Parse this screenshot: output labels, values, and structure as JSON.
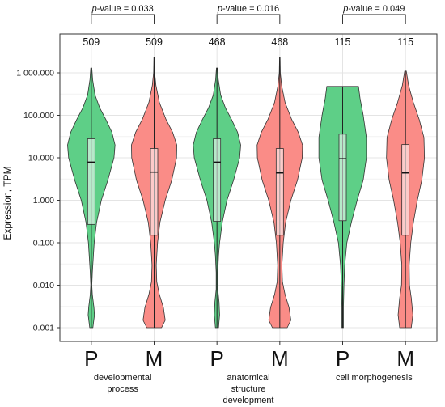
{
  "chart_data": {
    "type": "violin",
    "ylabel": "Expression, TPM",
    "yscale": "log10",
    "ylim": [
      0.001,
      1000
    ],
    "yticks": [
      {
        "value": 0.001,
        "label": "0.001"
      },
      {
        "value": 0.01,
        "label": "0.010"
      },
      {
        "value": 0.1,
        "label": "0.100"
      },
      {
        "value": 1,
        "label": "1.000"
      },
      {
        "value": 10,
        "label": "10.000"
      },
      {
        "value": 100,
        "label": "100.000"
      },
      {
        "value": 1000,
        "label": "1 000.000"
      }
    ],
    "grid": true,
    "colors": {
      "P": "#5ecf87",
      "M": "#fa8c87"
    },
    "groups": [
      {
        "label_lines": [
          "developmental",
          "process"
        ],
        "pvalue_prefix": "p",
        "pvalue_text": "-value = 0.033",
        "violins": [
          {
            "category": "P",
            "n": "509",
            "min": 0.001,
            "max": 1300,
            "q1": 0.27,
            "median": 7.9,
            "q3": 28,
            "width_profile": [
              [
                0.001,
                0.06
              ],
              [
                0.002,
                0.12
              ],
              [
                0.003,
                0.1
              ],
              [
                0.006,
                0.04
              ],
              [
                0.01,
                0.02
              ],
              [
                0.02,
                0.04
              ],
              [
                0.04,
                0.07
              ],
              [
                0.1,
                0.11
              ],
              [
                0.3,
                0.2
              ],
              [
                1,
                0.38
              ],
              [
                3,
                0.63
              ],
              [
                10,
                0.86
              ],
              [
                20,
                0.9
              ],
              [
                40,
                0.78
              ],
              [
                80,
                0.55
              ],
              [
                150,
                0.32
              ],
              [
                300,
                0.14
              ],
              [
                700,
                0.05
              ],
              [
                1300,
                0.02
              ]
            ]
          },
          {
            "category": "M",
            "n": "509",
            "min": 0.001,
            "max": 2300,
            "q1": 0.15,
            "median": 4.6,
            "q3": 16.5,
            "width_profile": [
              [
                0.001,
                0.28
              ],
              [
                0.0015,
                0.42
              ],
              [
                0.003,
                0.35
              ],
              [
                0.006,
                0.2
              ],
              [
                0.012,
                0.1
              ],
              [
                0.03,
                0.08
              ],
              [
                0.1,
                0.13
              ],
              [
                0.3,
                0.22
              ],
              [
                1,
                0.42
              ],
              [
                3,
                0.67
              ],
              [
                10,
                0.85
              ],
              [
                20,
                0.86
              ],
              [
                40,
                0.7
              ],
              [
                80,
                0.45
              ],
              [
                200,
                0.2
              ],
              [
                500,
                0.07
              ],
              [
                1000,
                0.02
              ],
              [
                2300,
                0.01
              ]
            ]
          }
        ]
      },
      {
        "label_lines": [
          "anatomical",
          "structure",
          "development"
        ],
        "pvalue_prefix": "p",
        "pvalue_text": "-value = 0.016",
        "violins": [
          {
            "category": "P",
            "n": "468",
            "min": 0.001,
            "max": 1300,
            "q1": 0.32,
            "median": 7.9,
            "q3": 28,
            "width_profile": [
              [
                0.001,
                0.06
              ],
              [
                0.002,
                0.1
              ],
              [
                0.004,
                0.08
              ],
              [
                0.008,
                0.03
              ],
              [
                0.02,
                0.03
              ],
              [
                0.05,
                0.06
              ],
              [
                0.1,
                0.1
              ],
              [
                0.3,
                0.2
              ],
              [
                1,
                0.38
              ],
              [
                3,
                0.63
              ],
              [
                10,
                0.86
              ],
              [
                20,
                0.9
              ],
              [
                40,
                0.78
              ],
              [
                80,
                0.55
              ],
              [
                150,
                0.32
              ],
              [
                300,
                0.14
              ],
              [
                700,
                0.05
              ],
              [
                1300,
                0.02
              ]
            ]
          },
          {
            "category": "M",
            "n": "468",
            "min": 0.001,
            "max": 2300,
            "q1": 0.15,
            "median": 4.4,
            "q3": 16.5,
            "width_profile": [
              [
                0.001,
                0.28
              ],
              [
                0.0015,
                0.42
              ],
              [
                0.003,
                0.35
              ],
              [
                0.006,
                0.2
              ],
              [
                0.012,
                0.1
              ],
              [
                0.03,
                0.08
              ],
              [
                0.1,
                0.13
              ],
              [
                0.3,
                0.22
              ],
              [
                1,
                0.42
              ],
              [
                3,
                0.67
              ],
              [
                10,
                0.85
              ],
              [
                20,
                0.86
              ],
              [
                40,
                0.7
              ],
              [
                80,
                0.45
              ],
              [
                200,
                0.2
              ],
              [
                500,
                0.07
              ],
              [
                1000,
                0.02
              ],
              [
                2300,
                0.01
              ]
            ]
          }
        ]
      },
      {
        "label_lines": [
          "cell morphogenesis"
        ],
        "pvalue_prefix": "p",
        "pvalue_text": "-value = 0.049",
        "violins": [
          {
            "category": "P",
            "n": "115",
            "min": 0.001,
            "max": 480,
            "q1": 0.33,
            "median": 9.5,
            "q3": 36,
            "width_profile": [
              [
                0.001,
                0.03
              ],
              [
                0.003,
                0.03
              ],
              [
                0.01,
                0.05
              ],
              [
                0.03,
                0.08
              ],
              [
                0.1,
                0.16
              ],
              [
                0.3,
                0.33
              ],
              [
                1,
                0.55
              ],
              [
                3,
                0.78
              ],
              [
                10,
                0.9
              ],
              [
                30,
                0.9
              ],
              [
                100,
                0.78
              ],
              [
                250,
                0.66
              ],
              [
                480,
                0.6
              ]
            ]
          },
          {
            "category": "M",
            "n": "115",
            "min": 0.001,
            "max": 1100,
            "q1": 0.15,
            "median": 4.4,
            "q3": 20.5,
            "width_profile": [
              [
                0.001,
                0.22
              ],
              [
                0.002,
                0.28
              ],
              [
                0.005,
                0.22
              ],
              [
                0.01,
                0.15
              ],
              [
                0.03,
                0.14
              ],
              [
                0.1,
                0.2
              ],
              [
                0.3,
                0.3
              ],
              [
                1,
                0.45
              ],
              [
                3,
                0.62
              ],
              [
                10,
                0.72
              ],
              [
                30,
                0.7
              ],
              [
                80,
                0.52
              ],
              [
                200,
                0.3
              ],
              [
                500,
                0.12
              ],
              [
                1100,
                0.03
              ]
            ]
          }
        ]
      }
    ]
  }
}
